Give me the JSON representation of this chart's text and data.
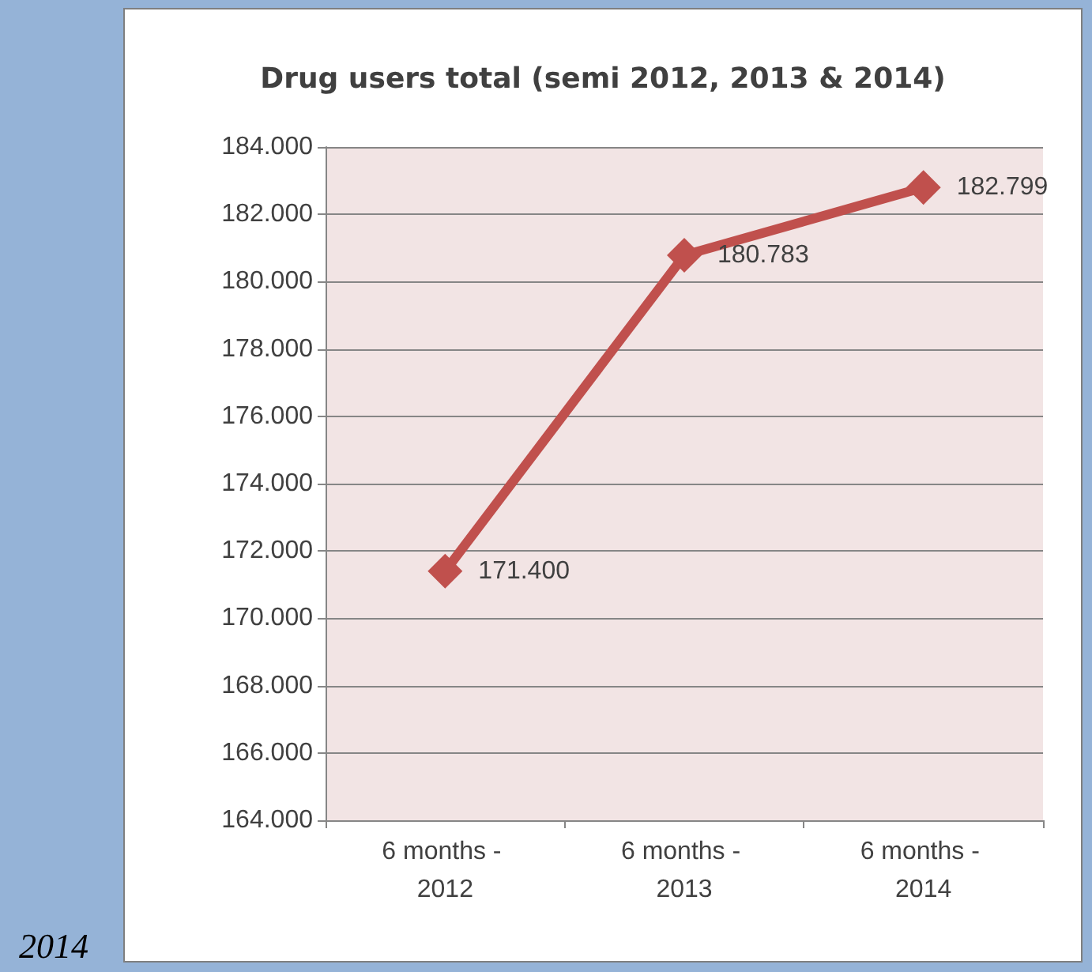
{
  "chart_data": {
    "type": "line",
    "title": "Drug users total (semi 2012, 2013 & 2014)",
    "categories": [
      "6 months - 2012",
      "6 months - 2013",
      "6 months - 2014"
    ],
    "series": [
      {
        "color": "#c0504d",
        "values": [
          171400,
          180783,
          182799
        ],
        "value_labels": [
          "171.400",
          "180.783",
          "182.799"
        ]
      }
    ],
    "ylim": [
      164000,
      184000
    ],
    "yticks": [
      {
        "value": 164000,
        "label": "164.000"
      },
      {
        "value": 166000,
        "label": "166.000"
      },
      {
        "value": 168000,
        "label": "168.000"
      },
      {
        "value": 170000,
        "label": "170.000"
      },
      {
        "value": 172000,
        "label": "172.000"
      },
      {
        "value": 174000,
        "label": "174.000"
      },
      {
        "value": 176000,
        "label": "176.000"
      },
      {
        "value": 178000,
        "label": "178.000"
      },
      {
        "value": 180000,
        "label": "180.000"
      },
      {
        "value": 182000,
        "label": "182.000"
      },
      {
        "value": 184000,
        "label": "184.000"
      }
    ],
    "grid": "y",
    "marker": "diamond",
    "line_style": "solid",
    "annotations": [
      "2014"
    ]
  }
}
